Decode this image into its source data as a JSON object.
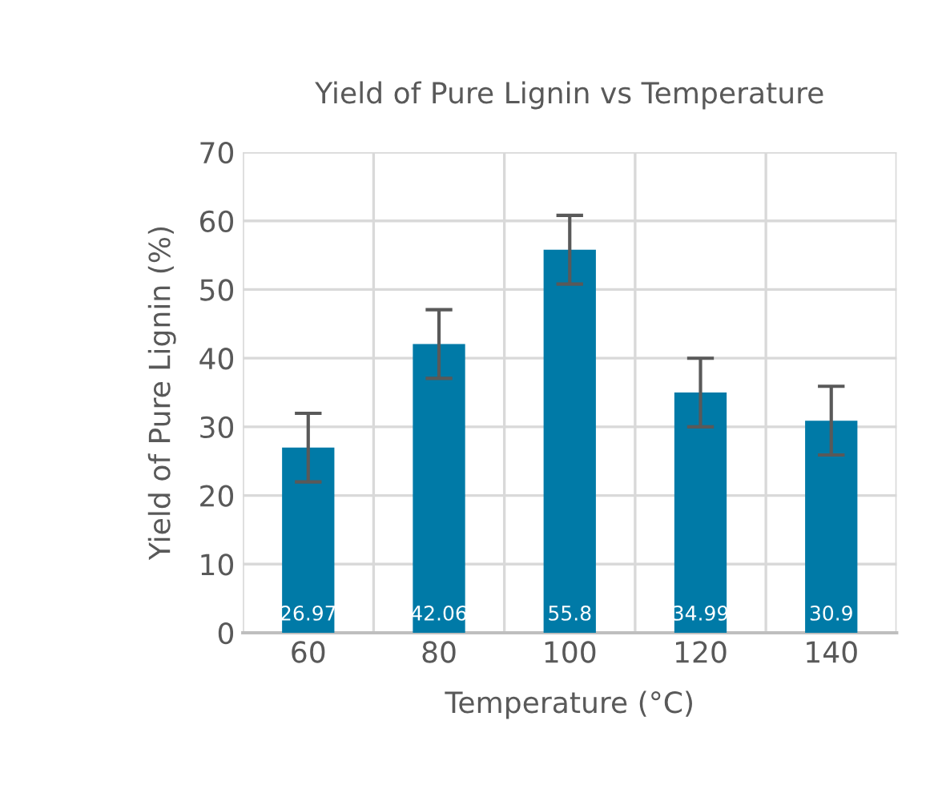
{
  "chart_data": {
    "type": "bar",
    "title": "Yield of Pure Lignin vs Temperature",
    "xlabel": "Temperature (°C)",
    "ylabel": "Yield of Pure Lignin (%)",
    "categories": [
      "60",
      "80",
      "100",
      "120",
      "140"
    ],
    "values": [
      26.97,
      42.06,
      55.8,
      34.99,
      30.9
    ],
    "errors": [
      5,
      5,
      5,
      5,
      5
    ],
    "color": "#007aa7",
    "ylim": [
      0,
      70
    ],
    "yticks": [
      0,
      10,
      20,
      30,
      40,
      50,
      60,
      70
    ],
    "grid": true,
    "data_labels": true
  }
}
